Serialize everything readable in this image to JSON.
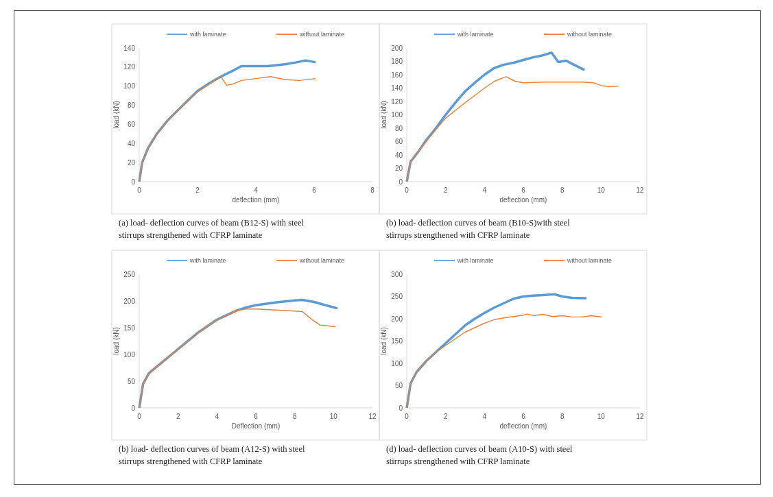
{
  "chart_data": [
    {
      "type": "line",
      "xlabel": "deflection (mm)",
      "ylabel": "load (kN)",
      "xlim": [
        0,
        8
      ],
      "xticks": [
        0,
        2,
        4,
        6,
        8
      ],
      "ylim": [
        0,
        140
      ],
      "yticks": [
        0,
        20,
        40,
        60,
        80,
        100,
        120,
        140
      ],
      "legend": "top",
      "grid": false,
      "annotations": [
        "(a)  load- deflection curves of beam (B12-S) with steel stirrups strengthened with CFRP laminate"
      ],
      "series": [
        {
          "name": "with laminate",
          "color": "#5b9bd5",
          "x": [
            0,
            0.1,
            0.3,
            0.6,
            1,
            1.5,
            2,
            2.4,
            2.8,
            3.2,
            3.5,
            4,
            4.4,
            5,
            5.4,
            5.7,
            6.05
          ],
          "values": [
            0,
            20,
            35,
            50,
            65,
            80,
            95,
            103,
            110,
            116,
            121,
            121,
            121,
            123,
            125,
            127,
            125
          ]
        },
        {
          "name": "without laminate",
          "color": "#ed7d31",
          "x": [
            0,
            0.1,
            0.3,
            0.6,
            1,
            1.5,
            2,
            2.4,
            2.8,
            3,
            3.2,
            3.5,
            4,
            4.5,
            5,
            5.5,
            6.05
          ],
          "values": [
            0,
            20,
            35,
            50,
            65,
            80,
            94,
            102,
            110,
            101,
            102,
            106,
            108,
            110,
            107,
            106,
            108
          ]
        }
      ]
    },
    {
      "type": "line",
      "xlabel": "deflection  (mm)",
      "ylabel": "load (kN)",
      "xlim": [
        0,
        12
      ],
      "xticks": [
        0,
        2,
        4,
        6,
        8,
        10,
        12
      ],
      "ylim": [
        0,
        200
      ],
      "yticks": [
        0,
        20,
        40,
        60,
        80,
        100,
        120,
        140,
        160,
        180,
        200
      ],
      "legend": "top",
      "grid": false,
      "annotations": [
        "(b) load- deflection curves of beam (B10-S)with steel stirrups strengthened with CFRP laminate"
      ],
      "series": [
        {
          "name": "with  laminate",
          "color": "#5b9bd5",
          "x": [
            0,
            0.2,
            0.6,
            1,
            1.5,
            2,
            2.5,
            3,
            3.5,
            4,
            4.5,
            5,
            5.5,
            6,
            6.5,
            7,
            7.45,
            7.8,
            8.2,
            8.6,
            9.15
          ],
          "values": [
            0,
            30,
            45,
            62,
            80,
            100,
            118,
            135,
            148,
            160,
            170,
            175,
            178,
            182,
            186,
            189,
            193,
            179,
            181,
            175,
            167
          ]
        },
        {
          "name": "without laminate",
          "color": "#ed7d31",
          "x": [
            0,
            0.2,
            0.6,
            1,
            1.5,
            2,
            3,
            4,
            4.5,
            5.1,
            5.6,
            6,
            7,
            8,
            9,
            9.6,
            10,
            10.4,
            10.9
          ],
          "values": [
            0,
            30,
            45,
            60,
            78,
            95,
            118,
            140,
            150,
            157,
            150,
            148,
            149,
            149,
            149,
            148,
            144,
            142,
            143
          ]
        }
      ]
    },
    {
      "type": "line",
      "xlabel": "Deflection  (mm)",
      "ylabel": "load (kN)",
      "xlim": [
        0,
        12
      ],
      "xticks": [
        0,
        2,
        4,
        6,
        8,
        10,
        12
      ],
      "ylim": [
        0,
        250
      ],
      "yticks": [
        0,
        50,
        100,
        150,
        200,
        250
      ],
      "legend": "top",
      "grid": false,
      "annotations": [
        "(b)  load- deflection curves of beam (A12-S) with steel stirrups strengthened with CFRP laminate"
      ],
      "series": [
        {
          "name": "with laminate",
          "color": "#5b9bd5",
          "x": [
            0,
            0.2,
            0.5,
            1,
            2,
            3,
            4,
            5,
            5.5,
            6,
            7,
            8,
            8.4,
            9,
            9.5,
            10.2
          ],
          "values": [
            0,
            45,
            65,
            80,
            110,
            140,
            165,
            182,
            188,
            192,
            197,
            201,
            202,
            198,
            193,
            186
          ]
        },
        {
          "name": "without laminate",
          "color": "#ed7d31",
          "x": [
            0,
            0.2,
            0.5,
            1,
            2,
            3,
            4,
            5,
            5.5,
            6,
            7,
            8,
            8.4,
            8.9,
            9.3,
            10.1
          ],
          "values": [
            0,
            45,
            65,
            80,
            110,
            140,
            165,
            182,
            185,
            185,
            183,
            181,
            180,
            165,
            155,
            152
          ]
        }
      ]
    },
    {
      "type": "line",
      "xlabel": "deflection  (mm)",
      "ylabel": "load  (kN)",
      "xlim": [
        0,
        12
      ],
      "xticks": [
        0,
        2,
        4,
        6,
        8,
        10,
        12
      ],
      "ylim": [
        0,
        300
      ],
      "yticks": [
        0,
        50,
        100,
        150,
        200,
        250,
        300
      ],
      "legend": "top",
      "grid": false,
      "annotations": [
        "(d) load- deflection curves of beam (A10-S) with steel stirrups strengthened with CFRP laminate"
      ],
      "series": [
        {
          "name": "with laminate",
          "color": "#5b9bd5",
          "x": [
            0,
            0.2,
            0.5,
            1,
            1.5,
            2,
            2.5,
            3,
            3.5,
            4,
            4.5,
            5,
            5.5,
            6,
            6.5,
            7,
            7.6,
            8,
            8.5,
            9.25
          ],
          "values": [
            0,
            55,
            80,
            105,
            125,
            145,
            165,
            185,
            200,
            213,
            225,
            235,
            245,
            250,
            252,
            253,
            255,
            250,
            247,
            246
          ]
        },
        {
          "name": "without laminate",
          "color": "#ed7d31",
          "x": [
            0,
            0.2,
            0.5,
            1,
            1.5,
            2,
            3,
            4,
            4.5,
            5,
            5.5,
            6,
            6.2,
            6.5,
            7,
            7.5,
            8,
            8.5,
            9,
            9.5,
            10.05
          ],
          "values": [
            0,
            55,
            80,
            105,
            125,
            140,
            170,
            190,
            198,
            202,
            205,
            208,
            211,
            207,
            210,
            205,
            207,
            204,
            204,
            207,
            204
          ]
        }
      ]
    }
  ]
}
